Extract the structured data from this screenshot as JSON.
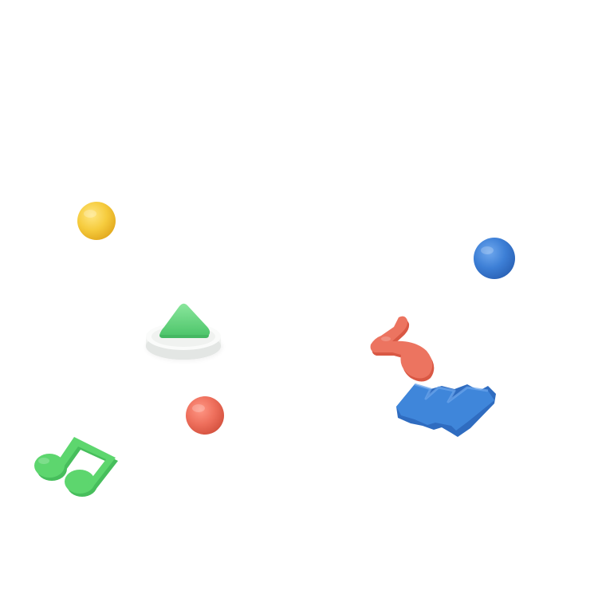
{
  "scene": {
    "background": "#ffffff",
    "objects": [
      {
        "name": "yellow-sphere",
        "shape": "sphere",
        "color": "#F5C93B"
      },
      {
        "name": "blue-sphere",
        "shape": "sphere",
        "color": "#3D7FD6"
      },
      {
        "name": "red-sphere",
        "shape": "sphere",
        "color": "#EE6F5C"
      },
      {
        "name": "green-triangle-on-white-disc",
        "shape": "triangle-button",
        "color": "#5FD27A",
        "base_color": "#F4F5F4"
      },
      {
        "name": "green-music-note",
        "shape": "beamed-eighth-notes",
        "color": "#5DD66E"
      },
      {
        "name": "coral-squiggle",
        "shape": "curved-hook",
        "color": "#EC7460"
      },
      {
        "name": "blue-zigzag-block",
        "shape": "zigzag",
        "color": "#3F86DA"
      }
    ]
  }
}
